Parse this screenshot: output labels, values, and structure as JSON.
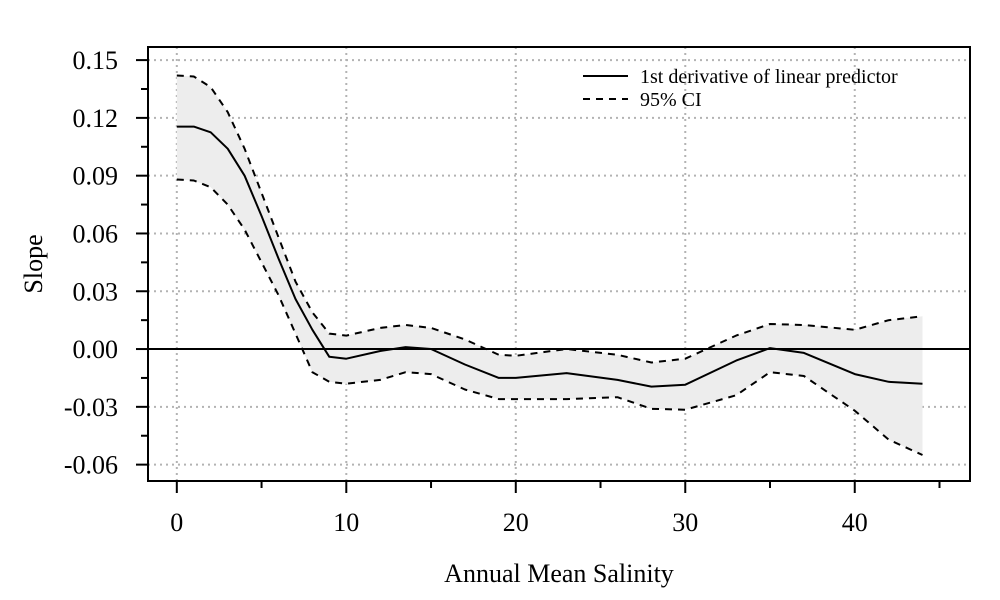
{
  "chart_data": {
    "type": "line",
    "title": "",
    "xlabel": "Annual Mean Salinity",
    "ylabel": "Slope",
    "xlim": [
      -1.7,
      46.8
    ],
    "ylim": [
      -0.0685,
      0.1568
    ],
    "x_ticks": [
      0,
      10,
      20,
      30,
      40
    ],
    "x_tick_labels": [
      "0",
      "10",
      "20",
      "30",
      "40"
    ],
    "x_minor_ticks": [
      5,
      15,
      25,
      35,
      45
    ],
    "y_ticks": [
      0.15,
      0.12,
      0.09,
      0.06,
      0.03,
      0.0,
      -0.03,
      -0.06
    ],
    "y_tick_labels": [
      "0.15",
      "0.12",
      "0.09",
      "0.06",
      "0.03",
      "0.00",
      "-0.03",
      "-0.06"
    ],
    "y_minor_ticks": [
      0.135,
      0.105,
      0.075,
      0.045,
      0.015,
      -0.015,
      -0.045
    ],
    "grid": true,
    "reference_line_y": 0.0,
    "legend_position": "top-right",
    "legend": [
      {
        "label": "1st derivative of linear predictor",
        "style": "solid"
      },
      {
        "label": "95% CI",
        "style": "dashed"
      }
    ],
    "colors": {
      "line": "#000000",
      "ci_band": "#ededed",
      "grid": "#b3b3b3"
    },
    "x": [
      0,
      1,
      2,
      3,
      4,
      5,
      6,
      7,
      8,
      9,
      10,
      12,
      13.5,
      15,
      17,
      19,
      20,
      23,
      26,
      28,
      30,
      33,
      35,
      37,
      40,
      42,
      44
    ],
    "series": [
      {
        "name": "1st derivative of linear predictor",
        "style": "solid",
        "values": [
          0.1155,
          0.1155,
          0.1125,
          0.104,
          0.09,
          0.069,
          0.047,
          0.026,
          0.01,
          -0.004,
          -0.005,
          -0.001,
          0.001,
          0.0,
          -0.008,
          -0.015,
          -0.015,
          -0.0125,
          -0.016,
          -0.0195,
          -0.0185,
          -0.006,
          0.0005,
          -0.002,
          -0.013,
          -0.017,
          -0.018
        ]
      },
      {
        "name": "95% CI",
        "style": "dashed",
        "values": [
          0.142,
          0.1415,
          0.136,
          0.123,
          0.104,
          0.081,
          0.058,
          0.035,
          0.019,
          0.008,
          0.007,
          0.011,
          0.0125,
          0.011,
          0.005,
          -0.003,
          -0.0035,
          0.0,
          -0.003,
          -0.007,
          -0.005,
          0.007,
          0.013,
          0.0125,
          0.01,
          0.015,
          0.017
        ]
      },
      {
        "name": "95% CI",
        "style": "dashed",
        "values": [
          0.088,
          0.0875,
          0.084,
          0.075,
          0.062,
          0.045,
          0.028,
          0.008,
          -0.012,
          -0.017,
          -0.018,
          -0.016,
          -0.012,
          -0.013,
          -0.021,
          -0.026,
          -0.026,
          -0.026,
          -0.025,
          -0.031,
          -0.0315,
          -0.024,
          -0.012,
          -0.014,
          -0.032,
          -0.047,
          -0.055
        ]
      }
    ]
  }
}
